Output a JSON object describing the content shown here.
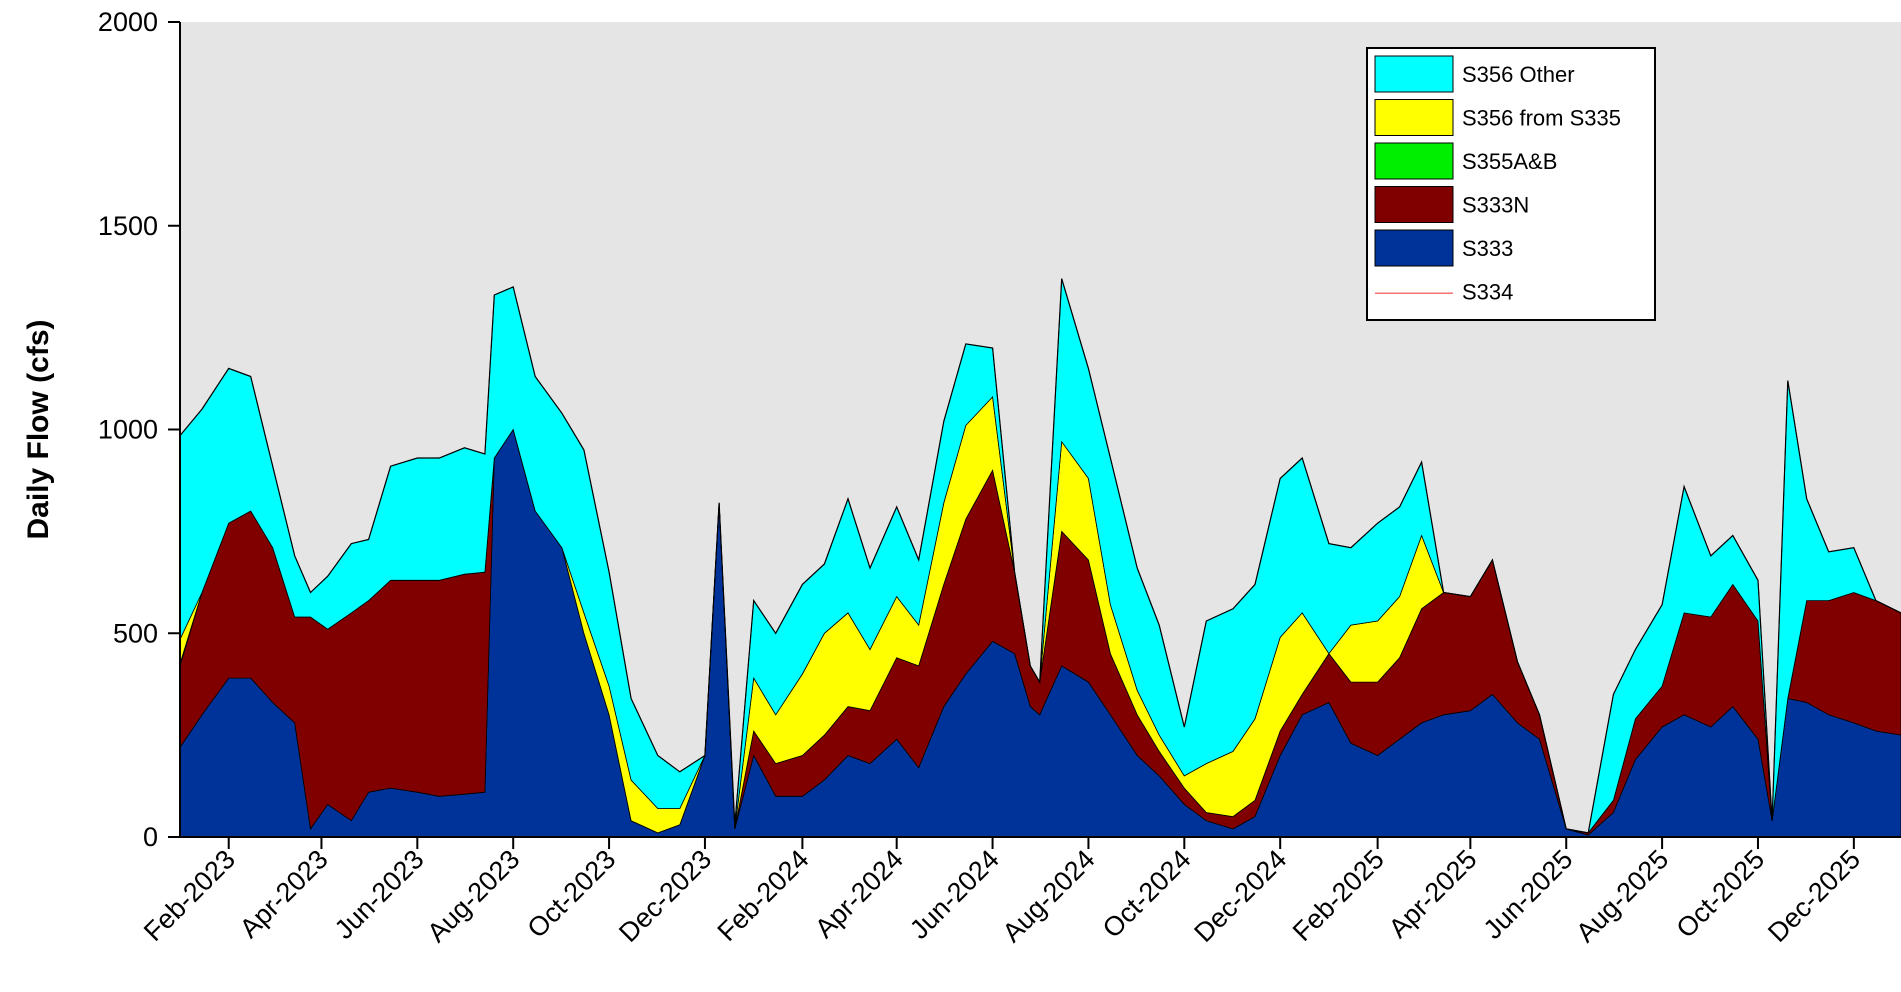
{
  "chart_data": {
    "type": "area",
    "stacked": true,
    "title": "",
    "xlabel": "",
    "ylabel": "Daily Flow (cfs)",
    "ylim": [
      0,
      2000
    ],
    "yticks": [
      "0",
      "500",
      "1000",
      "1500",
      "2000"
    ],
    "xlim": [
      "2023-01-01",
      "2025-12-31"
    ],
    "xtick_labels": [
      "Feb-2023",
      "Apr-2023",
      "Jun-2023",
      "Aug-2023",
      "Oct-2023",
      "Dec-2023",
      "Feb-2024",
      "Apr-2024",
      "Jun-2024",
      "Aug-2024",
      "Oct-2024",
      "Dec-2024",
      "Feb-2025",
      "Apr-2025",
      "Jun-2025",
      "Aug-2025",
      "Oct-2025",
      "Dec-2025"
    ],
    "xtick_dates": [
      "2023-02-01",
      "2023-04-01",
      "2023-06-01",
      "2023-08-01",
      "2023-10-01",
      "2023-12-01",
      "2024-02-01",
      "2024-04-01",
      "2024-06-01",
      "2024-08-01",
      "2024-10-01",
      "2024-12-01",
      "2025-02-01",
      "2025-04-01",
      "2025-06-01",
      "2025-08-01",
      "2025-10-01",
      "2025-12-01"
    ],
    "grid": false,
    "legend_position": "top-right",
    "plot_background": "#e5e5e5",
    "dates": [
      "2023-01-01",
      "2023-01-15",
      "2023-02-01",
      "2023-02-15",
      "2023-03-01",
      "2023-03-15",
      "2023-03-25",
      "2023-04-05",
      "2023-04-20",
      "2023-05-01",
      "2023-05-15",
      "2023-06-01",
      "2023-06-15",
      "2023-07-01",
      "2023-07-14",
      "2023-07-20",
      "2023-08-01",
      "2023-08-15",
      "2023-09-01",
      "2023-09-15",
      "2023-10-01",
      "2023-10-15",
      "2023-11-01",
      "2023-11-15",
      "2023-12-01",
      "2023-12-10",
      "2023-12-20",
      "2024-01-01",
      "2024-01-15",
      "2024-02-01",
      "2024-02-15",
      "2024-03-01",
      "2024-03-15",
      "2024-04-01",
      "2024-04-15",
      "2024-05-01",
      "2024-05-15",
      "2024-06-01",
      "2024-06-15",
      "2024-06-25",
      "2024-07-01",
      "2024-07-15",
      "2024-08-01",
      "2024-08-15",
      "2024-09-01",
      "2024-09-15",
      "2024-10-01",
      "2024-10-15",
      "2024-11-01",
      "2024-11-15",
      "2024-12-01",
      "2024-12-15",
      "2025-01-01",
      "2025-01-15",
      "2025-02-01",
      "2025-02-15",
      "2025-03-01",
      "2025-03-15",
      "2025-04-01",
      "2025-04-15",
      "2025-05-01",
      "2025-05-15",
      "2025-06-01",
      "2025-06-15",
      "2025-07-01",
      "2025-07-15",
      "2025-08-01",
      "2025-08-15",
      "2025-09-01",
      "2025-09-15",
      "2025-10-01",
      "2025-10-10",
      "2025-10-20",
      "2025-11-01",
      "2025-11-15",
      "2025-12-01",
      "2025-12-15",
      "2025-12-31"
    ],
    "series": [
      {
        "name": "S333",
        "color": "#003399",
        "values": [
          220,
          300,
          390,
          390,
          330,
          280,
          20,
          80,
          40,
          110,
          120,
          110,
          100,
          105,
          110,
          930,
          1000,
          800,
          710,
          500,
          300,
          40,
          10,
          30,
          200,
          820,
          20,
          200,
          100,
          100,
          140,
          200,
          180,
          240,
          170,
          320,
          400,
          480,
          450,
          320,
          300,
          420,
          380,
          300,
          200,
          150,
          80,
          40,
          20,
          50,
          200,
          300,
          330,
          230,
          200,
          240,
          280,
          300,
          310,
          350,
          280,
          240,
          20,
          5,
          60,
          190,
          270,
          300,
          270,
          320,
          240,
          40,
          340,
          330,
          300,
          280,
          260,
          250
        ]
      },
      {
        "name": "S333N",
        "color": "#800000",
        "values": [
          200,
          300,
          380,
          410,
          380,
          260,
          520,
          430,
          510,
          470,
          510,
          520,
          530,
          540,
          540,
          0,
          0,
          0,
          0,
          0,
          0,
          0,
          0,
          0,
          0,
          0,
          0,
          60,
          80,
          100,
          110,
          120,
          130,
          200,
          250,
          300,
          380,
          420,
          200,
          100,
          80,
          330,
          300,
          150,
          100,
          60,
          40,
          20,
          30,
          40,
          60,
          50,
          120,
          150,
          180,
          200,
          280,
          300,
          280,
          330,
          150,
          60,
          0,
          5,
          30,
          100,
          100,
          250,
          270,
          300,
          290,
          0,
          0,
          250,
          280,
          320,
          320,
          300
        ]
      },
      {
        "name": "S355A&B",
        "color": "#00ee00",
        "values": [
          5,
          0,
          0,
          0,
          0,
          0,
          0,
          0,
          0,
          0,
          0,
          0,
          0,
          0,
          0,
          0,
          0,
          0,
          0,
          0,
          0,
          0,
          0,
          0,
          0,
          0,
          0,
          0,
          0,
          0,
          0,
          0,
          0,
          0,
          0,
          0,
          0,
          0,
          0,
          0,
          0,
          0,
          0,
          0,
          0,
          0,
          0,
          0,
          0,
          0,
          0,
          0,
          0,
          0,
          0,
          0,
          0,
          0,
          0,
          0,
          0,
          0,
          0,
          0,
          0,
          0,
          0,
          0,
          0,
          0,
          0,
          0,
          0,
          0,
          0,
          0,
          0,
          0
        ]
      },
      {
        "name": "S356 from S335",
        "color": "#ffff00",
        "values": [
          60,
          0,
          0,
          0,
          0,
          0,
          0,
          0,
          0,
          0,
          0,
          0,
          0,
          0,
          0,
          0,
          0,
          0,
          0,
          50,
          70,
          100,
          60,
          40,
          0,
          0,
          0,
          130,
          120,
          200,
          250,
          230,
          150,
          150,
          100,
          200,
          230,
          180,
          0,
          0,
          0,
          220,
          200,
          120,
          60,
          40,
          30,
          120,
          160,
          200,
          230,
          200,
          0,
          140,
          150,
          150,
          180,
          0,
          0,
          0,
          0,
          0,
          0,
          0,
          0,
          0,
          0,
          0,
          0,
          0,
          0,
          0,
          0,
          0,
          0,
          0,
          0,
          0
        ]
      },
      {
        "name": "S356 Other",
        "color": "#00ffff",
        "values": [
          500,
          450,
          380,
          330,
          200,
          150,
          60,
          130,
          170,
          150,
          280,
          300,
          300,
          310,
          290,
          400,
          350,
          330,
          330,
          400,
          280,
          200,
          130,
          90,
          0,
          0,
          10,
          190,
          200,
          220,
          170,
          280,
          200,
          220,
          160,
          200,
          200,
          120,
          0,
          0,
          0,
          400,
          270,
          360,
          300,
          270,
          120,
          350,
          350,
          330,
          390,
          380,
          270,
          190,
          240,
          220,
          180,
          0,
          0,
          0,
          0,
          0,
          0,
          0,
          260,
          170,
          200,
          310,
          150,
          120,
          100,
          0,
          780,
          250,
          120,
          110,
          0,
          0
        ]
      },
      {
        "name": "S334",
        "color": "#ff7070",
        "line": true,
        "values": [
          0,
          0,
          0,
          0,
          0,
          0,
          0,
          0,
          0,
          0,
          0,
          0,
          0,
          0,
          0,
          0,
          0,
          0,
          0,
          0,
          0,
          0,
          0,
          0,
          0,
          0,
          0,
          0,
          0,
          0,
          0,
          0,
          0,
          0,
          0,
          0,
          0,
          0,
          0,
          0,
          0,
          0,
          0,
          0,
          0,
          0,
          0,
          0,
          0,
          0,
          0,
          0,
          0,
          0,
          0,
          0,
          0,
          0,
          0,
          0,
          0,
          0,
          0,
          0,
          0,
          0,
          0,
          0,
          0,
          0,
          0,
          0,
          0,
          0,
          0,
          0,
          0,
          0
        ]
      }
    ],
    "legend_order": [
      "S356 Other",
      "S356 from S335",
      "S355A&B",
      "S333N",
      "S333",
      "S334"
    ]
  }
}
